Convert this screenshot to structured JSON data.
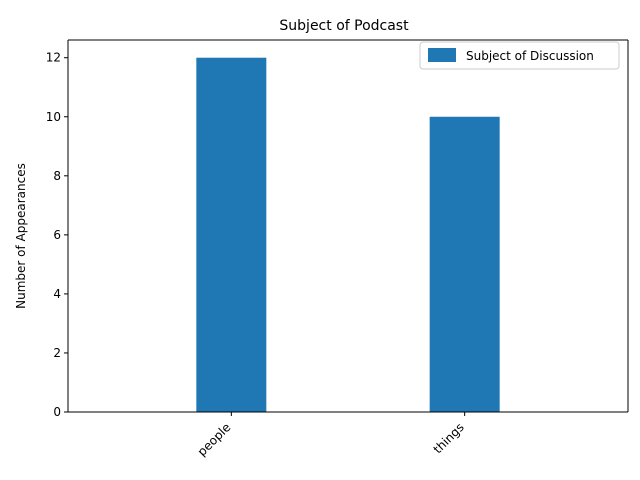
{
  "chart_data": {
    "type": "bar",
    "title": "Subject of Podcast",
    "xlabel": "",
    "ylabel": "Number of Appearances",
    "categories": [
      "people",
      "things"
    ],
    "series": [
      {
        "name": "Subject of Discussion",
        "values": [
          12,
          10
        ],
        "color": "#1f77b4"
      }
    ],
    "ylim": [
      0,
      12.6
    ],
    "yticks": [
      0,
      2,
      4,
      6,
      8,
      10,
      12
    ],
    "grid": false,
    "legend": "top-right"
  }
}
